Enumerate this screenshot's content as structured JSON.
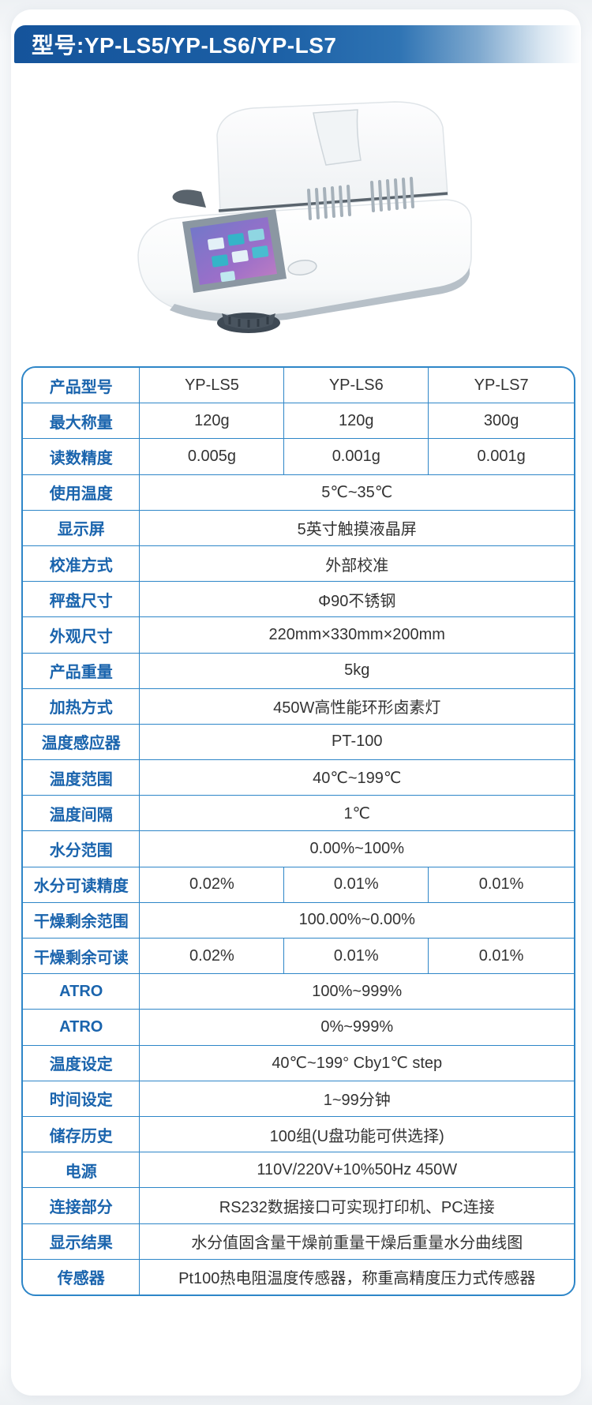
{
  "header": {
    "title": "型号:YP-LS5/YP-LS6/YP-LS7"
  },
  "colors": {
    "banner_blue": "#1b5fa5",
    "table_border_blue": "#2e86c8",
    "label_blue": "#1a64ad",
    "value_text": "#333333"
  },
  "device_image": {
    "name": "moisture-analyzer-photo"
  },
  "spec_table": {
    "rows": [
      {
        "label": "产品型号",
        "values": [
          "YP-LS5",
          "YP-LS6",
          "YP-LS7"
        ]
      },
      {
        "label": "最大称量",
        "values": [
          "120g",
          "120g",
          "300g"
        ]
      },
      {
        "label": "读数精度",
        "values": [
          "0.005g",
          "0.001g",
          "0.001g"
        ]
      },
      {
        "label": "使用温度",
        "span": "5℃~35℃"
      },
      {
        "label": "显示屏",
        "span": "5英寸触摸液晶屏"
      },
      {
        "label": "校准方式",
        "span": "外部校准"
      },
      {
        "label": "秤盘尺寸",
        "span": "Φ90不锈钢"
      },
      {
        "label": "外观尺寸",
        "span": "220mm×330mm×200mm"
      },
      {
        "label": "产品重量",
        "span": "5kg"
      },
      {
        "label": "加热方式",
        "span": "450W高性能环形卤素灯"
      },
      {
        "label": "温度感应器",
        "span": "PT-100"
      },
      {
        "label": "温度范围",
        "span": "40℃~199℃"
      },
      {
        "label": "温度间隔",
        "span": "1℃"
      },
      {
        "label": "水分范围",
        "span": "0.00%~100%"
      },
      {
        "label": "水分可读精度",
        "values": [
          "0.02%",
          "0.01%",
          "0.01%"
        ]
      },
      {
        "label": "干燥剩余范围",
        "span": "100.00%~0.00%"
      },
      {
        "label": "干燥剩余可读",
        "values": [
          "0.02%",
          "0.01%",
          "0.01%"
        ]
      },
      {
        "label": "ATRO",
        "span": "100%~999%"
      },
      {
        "label": "ATRO",
        "span": "0%~999%"
      },
      {
        "label": "温度设定",
        "span": "40℃~199° Cby1℃ step"
      },
      {
        "label": "时间设定",
        "span": "1~99分钟"
      },
      {
        "label": "储存历史",
        "span": "100组(U盘功能可供选择)"
      },
      {
        "label": "电源",
        "span": "110V/220V+10%50Hz 450W"
      },
      {
        "label": "连接部分",
        "span": "RS232数据接口可实现打印机、PC连接"
      },
      {
        "label": "显示结果",
        "span": "水分值固含量干燥前重量干燥后重量水分曲线图"
      },
      {
        "label": "传感器",
        "span": "Pt100热电阻温度传感器，称重高精度压力式传感器"
      }
    ]
  }
}
